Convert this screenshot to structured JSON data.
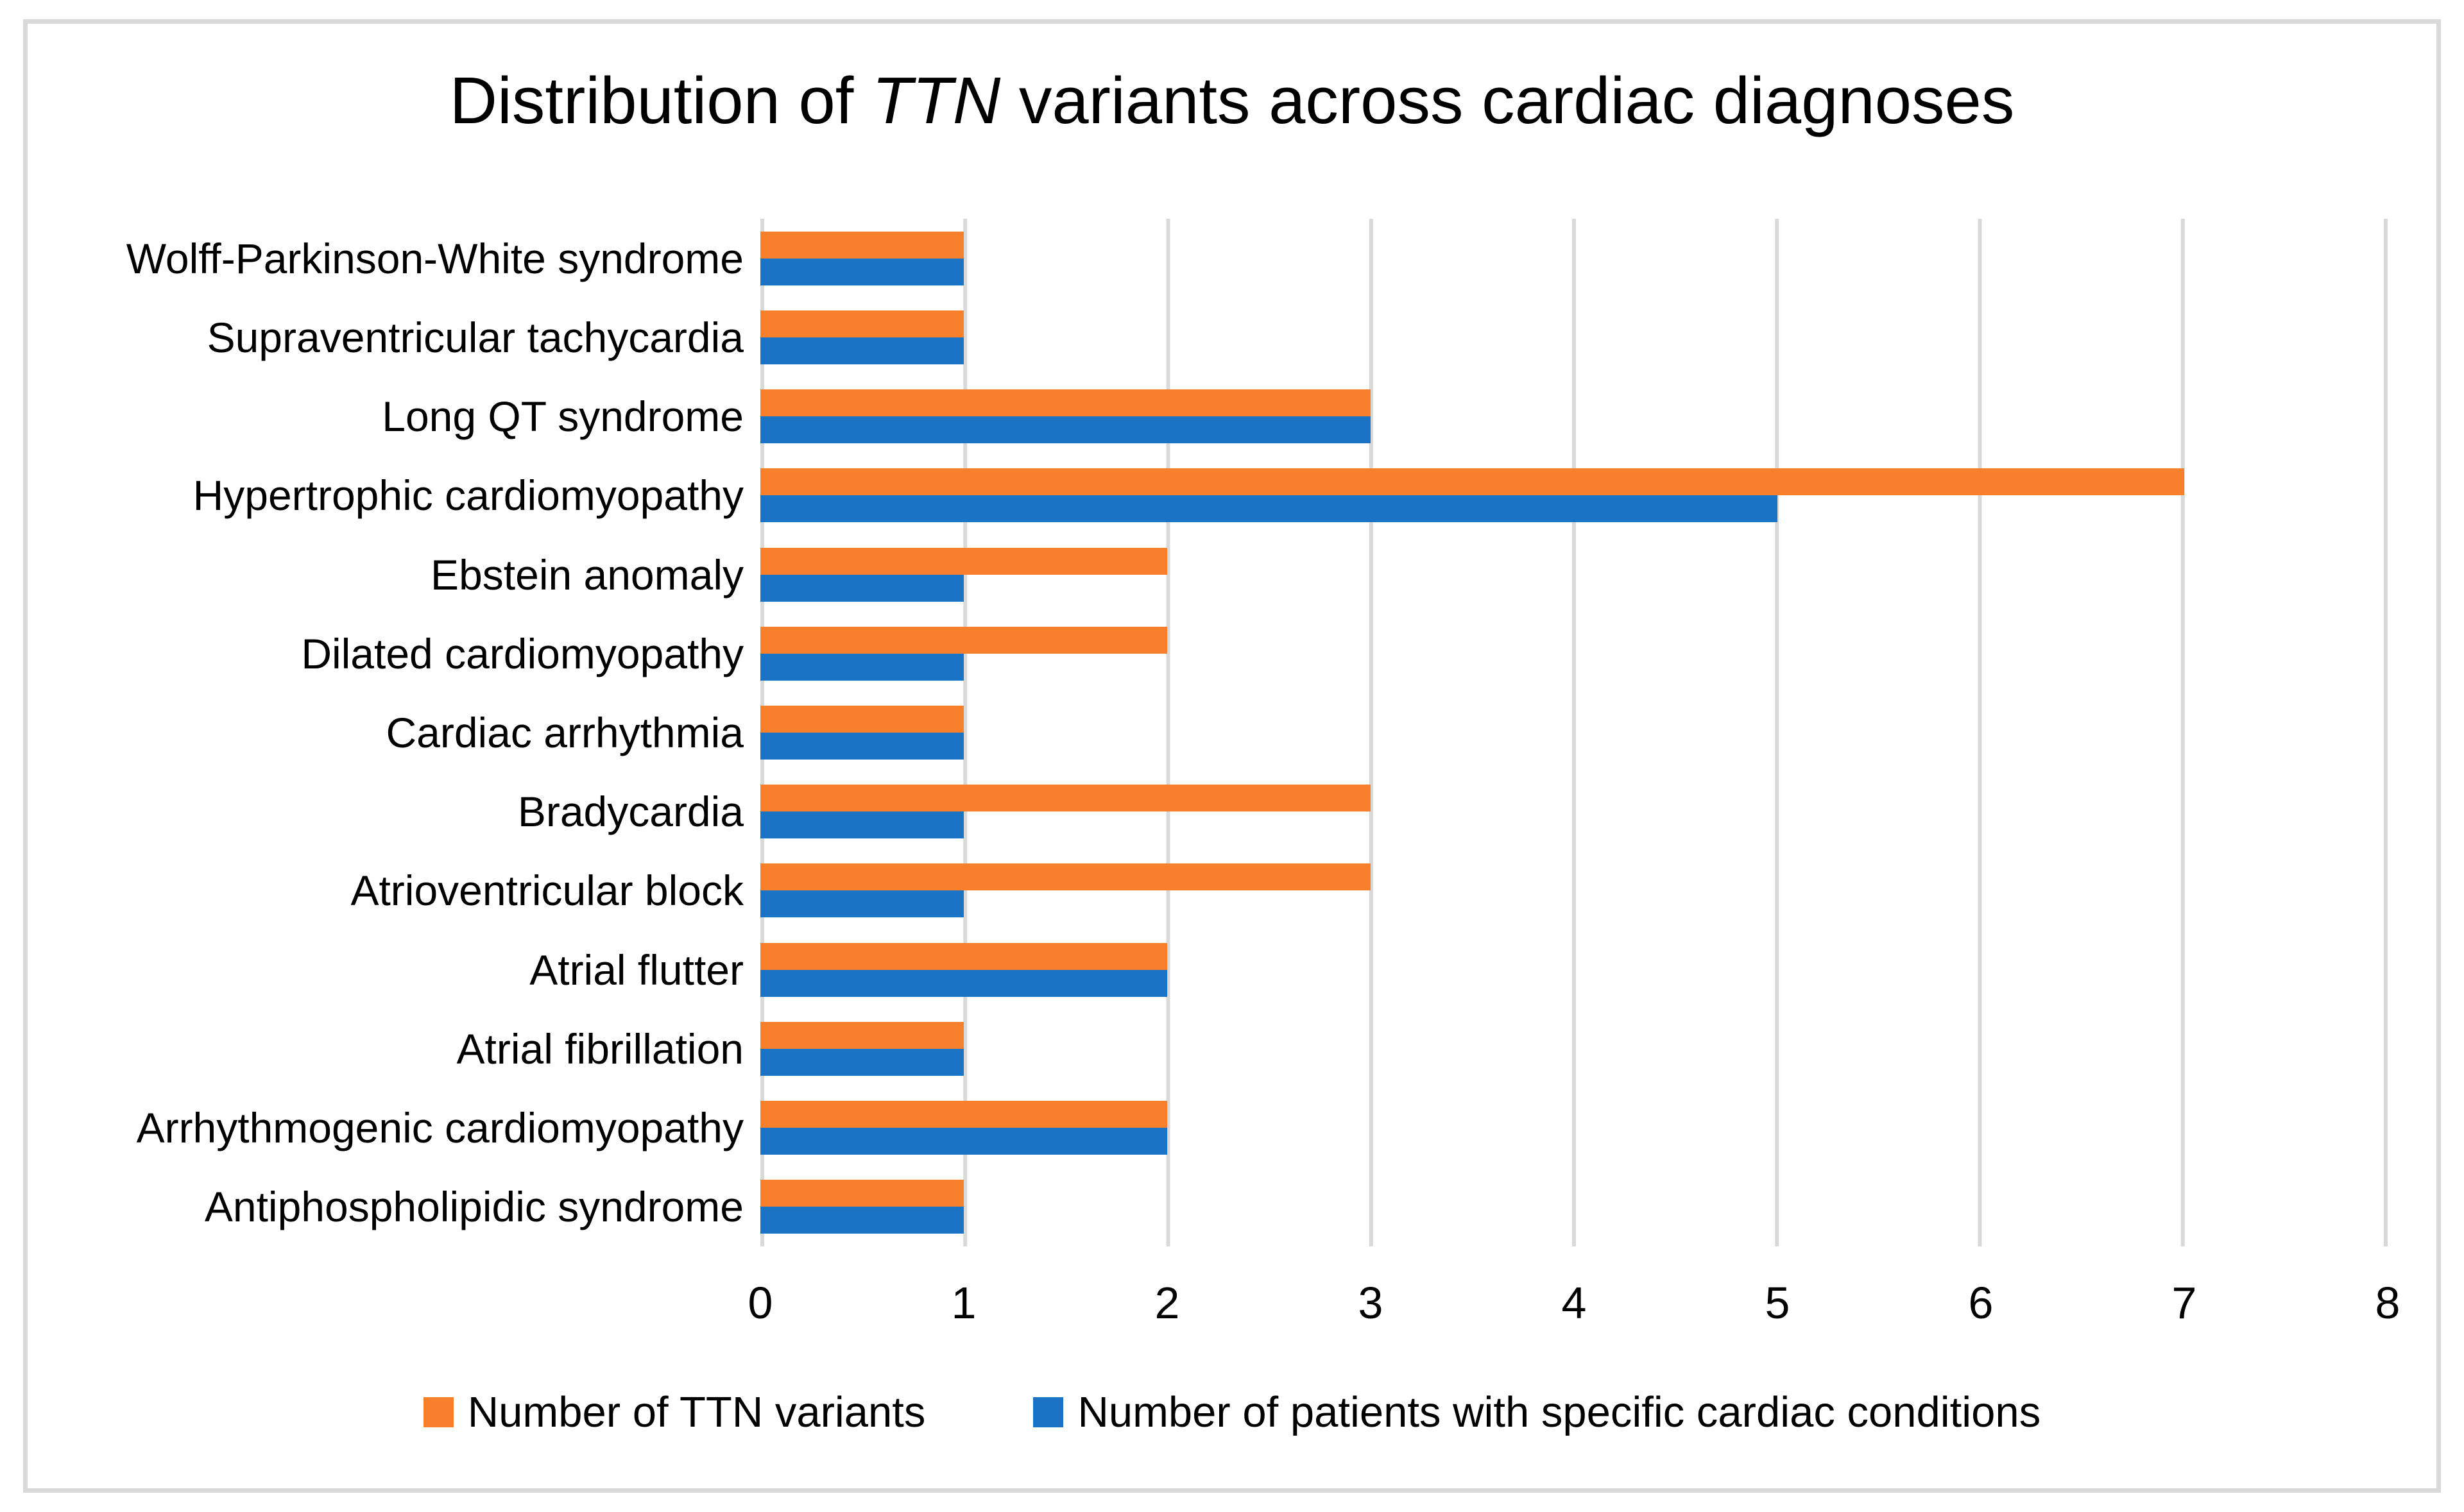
{
  "figure": {
    "title": {
      "prefix": "Distribution of ",
      "italic": "TTN",
      "suffix": " variants across cardiac diagnoses"
    },
    "border_color": "#D9D9D9"
  },
  "chart_data": {
    "type": "bar",
    "orientation": "horizontal",
    "title": "Distribution of TTN variants across cardiac diagnoses",
    "categories": [
      "Wolff-Parkinson-White syndrome",
      "Supraventricular tachycardia",
      "Long QT syndrome",
      "Hypertrophic cardiomyopathy",
      "Ebstein anomaly",
      "Dilated cardiomyopathy",
      "Cardiac arrhythmia",
      "Bradycardia",
      "Atrioventricular block",
      "Atrial flutter",
      "Atrial fibrillation",
      "Arrhythmogenic cardiomyopathy",
      "Antiphospholipidic syndrome"
    ],
    "series": [
      {
        "name": "Number of TTN variants",
        "color": "#F8802D",
        "values": [
          1,
          1,
          3,
          7,
          2,
          2,
          1,
          3,
          3,
          2,
          1,
          2,
          1
        ]
      },
      {
        "name": "Number of patients with specific cardiac conditions",
        "color": "#1B73C6",
        "values": [
          1,
          1,
          3,
          5,
          1,
          1,
          1,
          1,
          1,
          2,
          1,
          2,
          1
        ]
      }
    ],
    "xlabel": "",
    "ylabel": "",
    "xlim": [
      0,
      8
    ],
    "xticks": [
      0,
      1,
      2,
      3,
      4,
      5,
      6,
      7,
      8
    ],
    "grid": "vertical-gridlines-on",
    "gridline_color": "#D9D9D9",
    "legend_position": "bottom"
  }
}
